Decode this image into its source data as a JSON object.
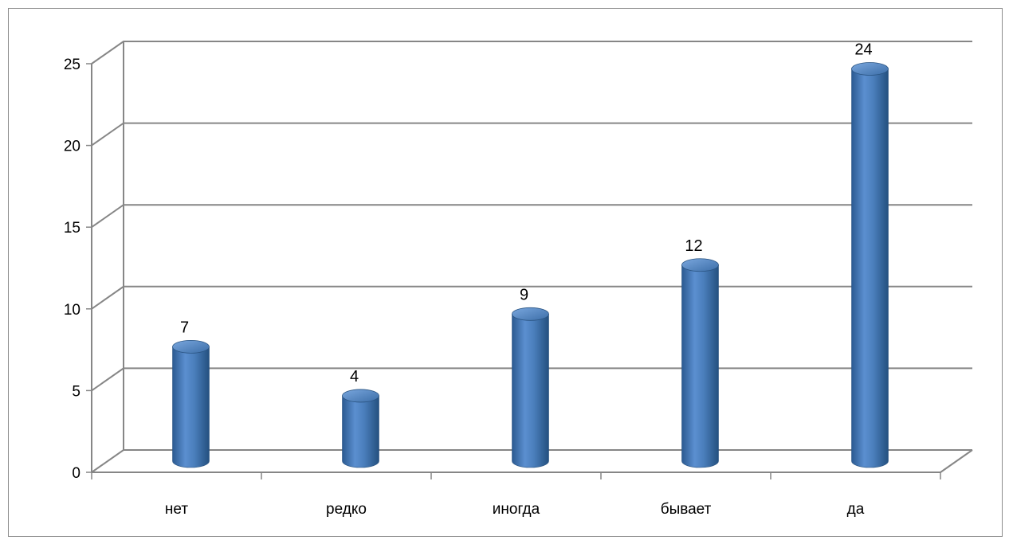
{
  "chart_data": {
    "type": "bar",
    "style": "3d-cylinder",
    "categories": [
      "нет",
      "редко",
      "иногда",
      "бывает",
      "да"
    ],
    "values": [
      7,
      4,
      9,
      12,
      24
    ],
    "data_labels": [
      "7",
      "4",
      "9",
      "12",
      "24"
    ],
    "title": "",
    "xlabel": "",
    "ylabel": "",
    "ylim": [
      0,
      25
    ],
    "y_ticks": [
      "0",
      "5",
      "10",
      "15",
      "20",
      "25"
    ],
    "grid": true,
    "legend": "none",
    "bar_color": "#4a7ebb",
    "grid_color": "#868686"
  }
}
